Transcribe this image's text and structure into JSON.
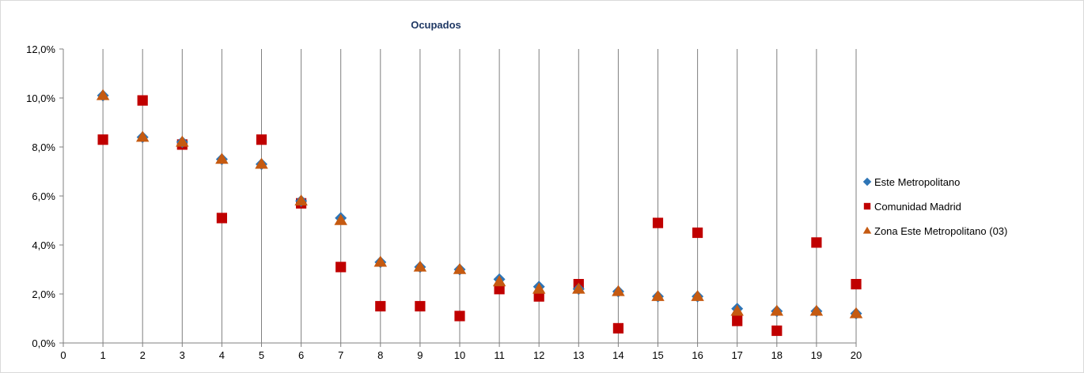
{
  "chart_data": {
    "type": "scatter",
    "title": "Ocupados",
    "xlabel": "",
    "ylabel": "",
    "xlim": [
      0,
      20
    ],
    "ylim": [
      0,
      0.12
    ],
    "x_ticks": [
      "0",
      "1",
      "2",
      "3",
      "4",
      "5",
      "6",
      "7",
      "8",
      "9",
      "10",
      "11",
      "12",
      "13",
      "14",
      "15",
      "16",
      "17",
      "18",
      "19",
      "20"
    ],
    "y_ticks": [
      {
        "value": 0.0,
        "label": "0,0%"
      },
      {
        "value": 0.02,
        "label": "2,0%"
      },
      {
        "value": 0.04,
        "label": "4,0%"
      },
      {
        "value": 0.06,
        "label": "6,0%"
      },
      {
        "value": 0.08,
        "label": "8,0%"
      },
      {
        "value": 0.1,
        "label": "10,0%"
      },
      {
        "value": 0.12,
        "label": "12,0%"
      }
    ],
    "vertical_gridlines": true,
    "legend_position": "right",
    "x": [
      1,
      2,
      3,
      4,
      5,
      6,
      7,
      8,
      9,
      10,
      11,
      12,
      13,
      14,
      15,
      16,
      17,
      18,
      19,
      20
    ],
    "series": [
      {
        "name": "Este Metropolitano",
        "marker": "diamond",
        "color": "#2e75b6",
        "values": [
          0.101,
          0.084,
          0.082,
          0.075,
          0.073,
          0.058,
          0.051,
          0.033,
          0.031,
          0.03,
          0.026,
          0.023,
          0.022,
          0.021,
          0.019,
          0.019,
          0.014,
          0.013,
          0.013,
          0.012
        ]
      },
      {
        "name": "Comunidad Madrid",
        "marker": "square",
        "color": "#c00000",
        "values": [
          0.083,
          0.099,
          0.081,
          0.051,
          0.083,
          0.057,
          0.031,
          0.015,
          0.015,
          0.011,
          0.022,
          0.019,
          0.024,
          0.006,
          0.049,
          0.045,
          0.009,
          0.005,
          0.041,
          0.024
        ]
      },
      {
        "name": "Zona Este Metropolitano (03)",
        "marker": "triangle",
        "color": "#c55a11",
        "values": [
          0.101,
          0.084,
          0.082,
          0.075,
          0.073,
          0.058,
          0.05,
          0.033,
          0.031,
          0.03,
          0.025,
          0.022,
          0.022,
          0.021,
          0.019,
          0.019,
          0.013,
          0.013,
          0.013,
          0.012
        ]
      }
    ]
  }
}
